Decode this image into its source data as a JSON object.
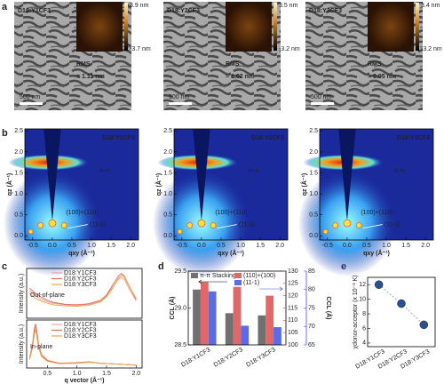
{
  "panel_labels": [
    "a",
    "b",
    "c",
    "d",
    "e"
  ],
  "sem": [
    {
      "sample": "D18:Y1CF3",
      "rms_label": "RMS",
      "rms_value": "= 1.11 nm",
      "scale_bar": "500 nm",
      "colorbar_max": "3.9 nm",
      "colorbar_min": "-3.7 nm"
    },
    {
      "sample": "D18:Y2CF3",
      "rms_label": "RMS",
      "rms_value": "= 1.02 nm",
      "scale_bar": "500 nm",
      "colorbar_max": "3.5 nm",
      "colorbar_min": "-3.2 nm"
    },
    {
      "sample": "D18:Y3CF3",
      "rms_label": "RMS",
      "rms_value": "= 0.95 nm",
      "scale_bar": "500 nm",
      "colorbar_max": "3.4 nm",
      "colorbar_min": "-3.2 nm"
    }
  ],
  "giwaxs": {
    "samples": [
      "D18:Y1CF3",
      "D18:Y2CF3",
      "D18:Y3CF3"
    ],
    "peak_pi": "π-π",
    "peak_100": "(100)+(110)",
    "peak_111": "(11-1)",
    "xlabel": "qxy (Å⁻¹)",
    "ylabel": "qz (Å⁻¹)",
    "xlim": [
      -0.7,
      2.2
    ],
    "ylim": [
      -0.1,
      2.55
    ],
    "xticks": [
      -0.5,
      {
        "value": 0,
        "label": "0.0"
      },
      0.5,
      {
        "value": 1,
        "label": "1.0"
      },
      1.5,
      {
        "value": 2,
        "label": "2.0"
      }
    ],
    "yticks": [
      {
        "value": 0,
        "label": "0.0"
      },
      0.5,
      {
        "value": 1,
        "label": "1.0"
      },
      1.5,
      {
        "value": 2,
        "label": "2.0"
      },
      2.5
    ]
  },
  "chart_data": [
    {
      "type": "line",
      "annotation": "Out-of-plane",
      "ylabel": "Intensity (a.u.)",
      "x": [
        0.2,
        0.3,
        0.4,
        0.5,
        0.6,
        0.8,
        1.0,
        1.2,
        1.4,
        1.5,
        1.6,
        1.7,
        1.75,
        1.8,
        1.9,
        2.0
      ],
      "xlim": [
        0.15,
        2.1
      ],
      "ylim": [
        0,
        1
      ],
      "series": [
        {
          "name": "D18:Y1CF3",
          "color": "#f0a0a8",
          "values": [
            0.55,
            0.45,
            0.38,
            0.33,
            0.3,
            0.27,
            0.26,
            0.28,
            0.35,
            0.45,
            0.62,
            0.78,
            0.82,
            0.78,
            0.55,
            0.35
          ]
        },
        {
          "name": "D18:Y2CF3",
          "color": "#e07060",
          "values": [
            0.6,
            0.5,
            0.42,
            0.36,
            0.32,
            0.28,
            0.27,
            0.29,
            0.36,
            0.47,
            0.66,
            0.85,
            0.9,
            0.85,
            0.6,
            0.38
          ]
        },
        {
          "name": "D18:Y3CF3",
          "color": "#e8a848",
          "values": [
            0.5,
            0.4,
            0.34,
            0.3,
            0.27,
            0.25,
            0.24,
            0.26,
            0.33,
            0.43,
            0.6,
            0.8,
            0.86,
            0.83,
            0.6,
            0.4
          ]
        }
      ]
    },
    {
      "type": "line",
      "annotation": "In-plane",
      "ylabel": "Intensity (a.u.)",
      "xlabel": "q vector (Å⁻¹)",
      "x": [
        0.2,
        0.25,
        0.28,
        0.3,
        0.32,
        0.35,
        0.4,
        0.5,
        0.7,
        1.0,
        1.2,
        1.4,
        1.7,
        2.0
      ],
      "xlim": [
        0.15,
        2.1
      ],
      "ylim": [
        0,
        1
      ],
      "xticks": [
        0.5,
        {
          "value": 1,
          "label": "1.0"
        },
        1.5,
        {
          "value": 2,
          "label": "2.0"
        }
      ],
      "series": [
        {
          "name": "D18:Y1CF3",
          "color": "#f0a0a8",
          "values": [
            0.2,
            0.45,
            0.75,
            0.85,
            0.7,
            0.45,
            0.25,
            0.15,
            0.1,
            0.1,
            0.12,
            0.1,
            0.08,
            0.06
          ]
        },
        {
          "name": "D18:Y2CF3",
          "color": "#e07060",
          "values": [
            0.2,
            0.5,
            0.82,
            0.92,
            0.78,
            0.5,
            0.28,
            0.16,
            0.1,
            0.11,
            0.13,
            0.1,
            0.08,
            0.06
          ]
        },
        {
          "name": "D18:Y3CF3",
          "color": "#e8a848",
          "values": [
            0.18,
            0.42,
            0.7,
            0.8,
            0.68,
            0.44,
            0.24,
            0.14,
            0.09,
            0.1,
            0.12,
            0.1,
            0.08,
            0.06
          ]
        }
      ]
    },
    {
      "type": "bar",
      "ylabel": "CCL (Å)",
      "y2label": "CCL (Å)",
      "categories": [
        "D18:Y1CF3",
        "D18:Y2CF3",
        "D18:Y3CF3"
      ],
      "ylim": [
        28.5,
        29.5
      ],
      "yticks": [
        28.5,
        {
          "value": 29,
          "label": "29.0"
        },
        29.5
      ],
      "y2lim": [
        100,
        130
      ],
      "y2ticks": [
        100,
        105,
        110,
        115,
        120,
        125,
        130
      ],
      "y2color": "#d83030",
      "y3lim": [
        65,
        85
      ],
      "y3ticks": [
        65,
        70,
        75,
        80,
        85
      ],
      "y3color": "#4050e0",
      "series": [
        {
          "name": "π-π Stacking",
          "color": "#707070",
          "values": [
            29.25,
            28.93,
            28.9
          ]
        },
        {
          "name": "(110)+(100)",
          "color": "#e06868",
          "axis": "y2",
          "values": [
            125.5,
            123.6,
            120
          ]
        },
        {
          "name": "(11-1)",
          "color": "#5b6be8",
          "axis": "y3",
          "values": [
            79.5,
            70.2,
            69.8
          ]
        }
      ]
    },
    {
      "type": "scatter",
      "ylabel": "χdonor-acceptor (x 10⁻² K)",
      "categories": [
        "D18:Y1CF3",
        "D18:Y2CF3",
        "D18:Y3CF3"
      ],
      "values": [
        12,
        9.4,
        6.5
      ],
      "color": "#2a5090",
      "ylim": [
        3.5,
        13
      ],
      "yticks": [
        4,
        6,
        8,
        10,
        12
      ]
    }
  ]
}
